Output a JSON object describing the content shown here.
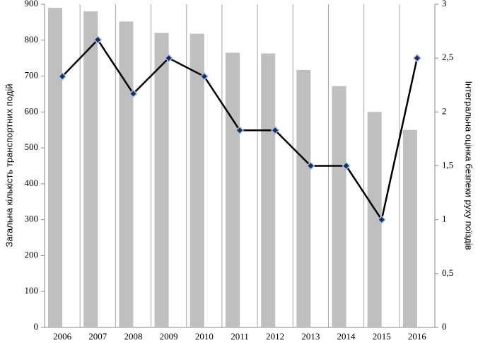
{
  "chart_data": {
    "type": "bar-line",
    "y_label": "Загальна кількість транспортних подій",
    "y2_label": "Інтегральна оцінка безпеки руху поїздів",
    "categories": [
      "2006",
      "2007",
      "2008",
      "2009",
      "2010",
      "2011",
      "2012",
      "2013",
      "2014",
      "2015",
      "2016"
    ],
    "series": [
      {
        "type": "bar",
        "color": "#bfbfbf",
        "values": [
          890,
          880,
          852,
          820,
          818,
          765,
          763,
          717,
          672,
          600,
          550
        ]
      },
      {
        "type": "line",
        "axis": "y2",
        "color": "#000000",
        "marker_color": "#1f2d5a",
        "values": [
          2.33,
          2.67,
          2.17,
          2.5,
          2.33,
          1.83,
          1.83,
          1.5,
          1.5,
          1.0,
          2.5
        ]
      }
    ],
    "ylim": [
      0,
      900
    ],
    "yticks": [
      0,
      100,
      200,
      300,
      400,
      500,
      600,
      700,
      800,
      900
    ],
    "y2lim": [
      0,
      3
    ],
    "y2ticks": [
      0,
      {
        "value": 0.5,
        "label": "0,5"
      },
      1,
      {
        "value": 1.5,
        "label": "1,5"
      },
      2,
      {
        "value": 2.5,
        "label": "2,5"
      },
      3
    ],
    "grid": true
  }
}
